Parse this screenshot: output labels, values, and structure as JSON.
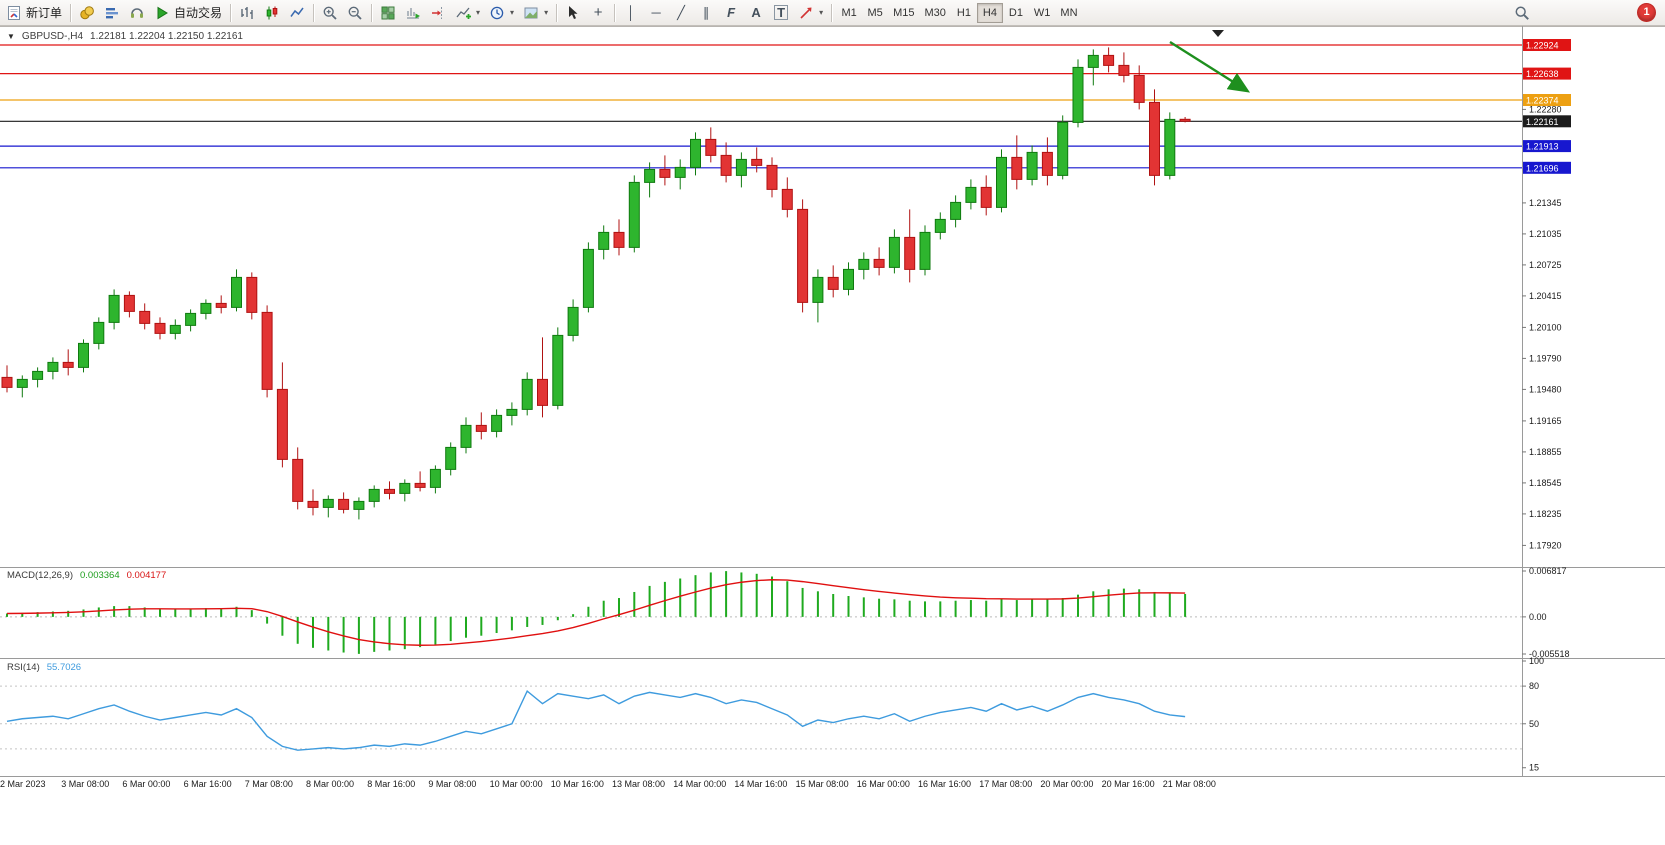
{
  "toolbar": {
    "new_order_label": "新订单",
    "auto_trading_label": "自动交易",
    "timeframes": [
      "M1",
      "M5",
      "M15",
      "M30",
      "H1",
      "H4",
      "D1",
      "W1",
      "MN"
    ],
    "active_timeframe": "H4",
    "notification_count": "1"
  },
  "icons": {
    "chart_menu": "▼",
    "caret": "▾",
    "crosshair": "+",
    "vertical_line": "│",
    "horizontal_line": "─",
    "trendline": "╱",
    "channel": "∥",
    "fibonacci": "F",
    "text_tool": "A",
    "text_label_tool": "T"
  },
  "chart": {
    "title_symbol_period": "GBPUSD-,H4",
    "ohlc_text": "1.22181 1.22204 1.22150 1.22161"
  },
  "indicators": {
    "macd": {
      "label": "MACD(12,26,9)",
      "main_value": "0.003364",
      "signal_value": "0.004177"
    },
    "rsi": {
      "label": "RSI(14)",
      "value": "55.7026"
    }
  },
  "chart_data": {
    "type": "candlestick",
    "symbol": "GBPUSD-",
    "timeframe": "H4",
    "current_bar_ohlc": [
      1.22181,
      1.22204,
      1.2215,
      1.22161
    ],
    "colors": {
      "bull": "#2eb52e",
      "bull_border": "#0f7a0f",
      "bear": "#e23434",
      "bear_border": "#b01212",
      "macd_hist": "#1faa1f",
      "macd_signal": "#e01010",
      "rsi_line": "#3e9bde"
    },
    "visible_price_range": [
      1.1775,
      1.2312
    ],
    "price_axis_ticks": [
      1.2228,
      1.21345,
      1.21035,
      1.20725,
      1.20415,
      1.201,
      1.1979,
      1.1948,
      1.19165,
      1.18855,
      1.18545,
      1.18235,
      1.1792
    ],
    "price_lines": [
      {
        "value": 1.22924,
        "color": "#e01414"
      },
      {
        "value": 1.22638,
        "color": "#e01414"
      },
      {
        "value": 1.22374,
        "color": "#eda012"
      },
      {
        "value": 1.22161,
        "color": "#1c1c1c"
      },
      {
        "value": 1.21913,
        "color": "#1717cf"
      },
      {
        "value": 1.21696,
        "color": "#1717cf"
      }
    ],
    "candles": [
      [
        1.196,
        1.1972,
        1.1945,
        1.195
      ],
      [
        1.195,
        1.1962,
        1.194,
        1.1958
      ],
      [
        1.1958,
        1.197,
        1.195,
        1.1966
      ],
      [
        1.1966,
        1.198,
        1.1958,
        1.1975
      ],
      [
        1.1975,
        1.1988,
        1.1962,
        1.197
      ],
      [
        1.197,
        1.1998,
        1.1965,
        1.1994
      ],
      [
        1.1994,
        1.202,
        1.1988,
        1.2015
      ],
      [
        1.2015,
        1.2048,
        1.2008,
        1.2042
      ],
      [
        1.2042,
        1.2046,
        1.202,
        1.2026
      ],
      [
        1.2026,
        1.2034,
        1.2008,
        1.2014
      ],
      [
        1.2014,
        1.202,
        1.1998,
        1.2004
      ],
      [
        1.2004,
        1.2018,
        1.1998,
        1.2012
      ],
      [
        1.2012,
        1.2028,
        1.2006,
        1.2024
      ],
      [
        1.2024,
        1.2038,
        1.2018,
        1.2034
      ],
      [
        1.2034,
        1.2042,
        1.2024,
        1.203
      ],
      [
        1.203,
        1.2068,
        1.2026,
        1.206
      ],
      [
        1.206,
        1.2065,
        1.2018,
        1.2025
      ],
      [
        1.2025,
        1.2032,
        1.194,
        1.1948
      ],
      [
        1.1948,
        1.1975,
        1.187,
        1.1878
      ],
      [
        1.1878,
        1.189,
        1.1828,
        1.1836
      ],
      [
        1.1836,
        1.1848,
        1.1822,
        1.183
      ],
      [
        1.183,
        1.1842,
        1.182,
        1.1838
      ],
      [
        1.1838,
        1.1845,
        1.1824,
        1.1828
      ],
      [
        1.1828,
        1.184,
        1.1818,
        1.1836
      ],
      [
        1.1836,
        1.1852,
        1.183,
        1.1848
      ],
      [
        1.1848,
        1.1856,
        1.1838,
        1.1844
      ],
      [
        1.1844,
        1.1858,
        1.1836,
        1.1854
      ],
      [
        1.1854,
        1.1866,
        1.1846,
        1.185
      ],
      [
        1.185,
        1.1872,
        1.1844,
        1.1868
      ],
      [
        1.1868,
        1.1895,
        1.1862,
        1.189
      ],
      [
        1.189,
        1.192,
        1.1884,
        1.1912
      ],
      [
        1.1912,
        1.1925,
        1.1898,
        1.1906
      ],
      [
        1.1906,
        1.1928,
        1.19,
        1.1922
      ],
      [
        1.1922,
        1.1935,
        1.1912,
        1.1928
      ],
      [
        1.1928,
        1.1965,
        1.1922,
        1.1958
      ],
      [
        1.1958,
        1.2,
        1.192,
        1.1932
      ],
      [
        1.1932,
        1.201,
        1.1928,
        1.2002
      ],
      [
        1.2002,
        1.2038,
        1.1996,
        1.203
      ],
      [
        1.203,
        1.2095,
        1.2025,
        1.2088
      ],
      [
        1.2088,
        1.2112,
        1.2078,
        1.2105
      ],
      [
        1.2105,
        1.2118,
        1.2082,
        1.209
      ],
      [
        1.209,
        1.2162,
        1.2085,
        1.2155
      ],
      [
        1.2155,
        1.2175,
        1.214,
        1.2168
      ],
      [
        1.2168,
        1.2182,
        1.2152,
        1.216
      ],
      [
        1.216,
        1.2178,
        1.2148,
        1.217
      ],
      [
        1.217,
        1.2205,
        1.2162,
        1.2198
      ],
      [
        1.2198,
        1.221,
        1.2175,
        1.2182
      ],
      [
        1.2182,
        1.2195,
        1.2155,
        1.2162
      ],
      [
        1.2162,
        1.2185,
        1.215,
        1.2178
      ],
      [
        1.2178,
        1.219,
        1.2165,
        1.2172
      ],
      [
        1.2172,
        1.218,
        1.214,
        1.2148
      ],
      [
        1.2148,
        1.216,
        1.212,
        1.2128
      ],
      [
        1.2128,
        1.2138,
        1.2025,
        1.2035
      ],
      [
        1.2035,
        1.2068,
        1.2015,
        1.206
      ],
      [
        1.206,
        1.2072,
        1.204,
        1.2048
      ],
      [
        1.2048,
        1.2075,
        1.2042,
        1.2068
      ],
      [
        1.2068,
        1.2085,
        1.2058,
        1.2078
      ],
      [
        1.2078,
        1.209,
        1.2062,
        1.207
      ],
      [
        1.207,
        1.2108,
        1.2064,
        1.21
      ],
      [
        1.21,
        1.2128,
        1.2055,
        1.2068
      ],
      [
        1.2068,
        1.2112,
        1.2062,
        1.2105
      ],
      [
        1.2105,
        1.2125,
        1.2098,
        1.2118
      ],
      [
        1.2118,
        1.2142,
        1.211,
        1.2135
      ],
      [
        1.2135,
        1.2158,
        1.2128,
        1.215
      ],
      [
        1.215,
        1.2162,
        1.2122,
        1.213
      ],
      [
        1.213,
        1.2188,
        1.2125,
        1.218
      ],
      [
        1.218,
        1.2202,
        1.2148,
        1.2158
      ],
      [
        1.2158,
        1.2192,
        1.2152,
        1.2185
      ],
      [
        1.2185,
        1.22,
        1.2152,
        1.2162
      ],
      [
        1.2162,
        1.2222,
        1.2158,
        1.2215
      ],
      [
        1.2215,
        1.2278,
        1.221,
        1.227
      ],
      [
        1.227,
        1.2288,
        1.2252,
        1.2282
      ],
      [
        1.2282,
        1.229,
        1.2265,
        1.2272
      ],
      [
        1.2272,
        1.2285,
        1.2255,
        1.2262
      ],
      [
        1.2262,
        1.2272,
        1.2228,
        1.2235
      ],
      [
        1.2235,
        1.2248,
        1.2152,
        1.2162
      ],
      [
        1.2162,
        1.2225,
        1.2158,
        1.2218
      ],
      [
        1.22181,
        1.22204,
        1.2215,
        1.22161
      ]
    ],
    "time_labels": [
      "2 Mar 2023",
      "3 Mar 08:00",
      "6 Mar 00:00",
      "6 Mar 16:00",
      "7 Mar 08:00",
      "8 Mar 00:00",
      "8 Mar 16:00",
      "9 Mar 08:00",
      "10 Mar 00:00",
      "10 Mar 16:00",
      "13 Mar 08:00",
      "14 Mar 00:00",
      "14 Mar 16:00",
      "15 Mar 08:00",
      "16 Mar 00:00",
      "16 Mar 16:00",
      "17 Mar 08:00",
      "20 Mar 00:00",
      "20 Mar 16:00",
      "21 Mar 08:00"
    ],
    "label_step": 4,
    "macd": {
      "range": [
        -0.005518,
        0.006817
      ],
      "axis": [
        {
          "value": 0.006817,
          "text": "0.006817"
        },
        {
          "value": 0,
          "text": "0.00"
        },
        {
          "value": -0.005518,
          "text": "-0.005518"
        }
      ],
      "histogram": [
        0.0005,
        0.0006,
        0.0007,
        0.0008,
        0.0009,
        0.0011,
        0.0014,
        0.0016,
        0.0016,
        0.0014,
        0.0012,
        0.0011,
        0.0012,
        0.0013,
        0.0013,
        0.0015,
        0.001,
        -0.001,
        -0.0028,
        -0.004,
        -0.0046,
        -0.005,
        -0.0053,
        -0.0055,
        -0.0052,
        -0.005,
        -0.0048,
        -0.0045,
        -0.0041,
        -0.0036,
        -0.0031,
        -0.0028,
        -0.0024,
        -0.002,
        -0.0015,
        -0.0012,
        -0.0005,
        0.0004,
        0.0015,
        0.0024,
        0.0028,
        0.0037,
        0.0046,
        0.0052,
        0.0057,
        0.0062,
        0.0066,
        0.0068,
        0.0066,
        0.0064,
        0.006,
        0.0053,
        0.0043,
        0.0038,
        0.0034,
        0.0031,
        0.0029,
        0.0027,
        0.0026,
        0.0024,
        0.0023,
        0.0023,
        0.0024,
        0.0025,
        0.0024,
        0.0026,
        0.0025,
        0.0027,
        0.0026,
        0.0028,
        0.0033,
        0.0038,
        0.0041,
        0.0042,
        0.0041,
        0.0037,
        0.0035,
        0.0034
      ]
    },
    "rsi": {
      "levels": [
        80,
        50,
        30
      ],
      "axis": [
        {
          "value": 100,
          "text": "100"
        },
        {
          "value": 80,
          "text": "80"
        },
        {
          "value": 50,
          "text": "50"
        },
        {
          "value": 15,
          "text": "15"
        }
      ],
      "values": [
        52,
        54,
        55,
        56,
        54,
        58,
        62,
        65,
        60,
        56,
        53,
        55,
        57,
        59,
        57,
        62,
        55,
        40,
        32,
        29,
        30,
        31,
        30,
        31,
        33,
        32,
        34,
        33,
        36,
        40,
        44,
        42,
        46,
        50,
        76,
        66,
        74,
        72,
        70,
        73,
        66,
        72,
        75,
        73,
        71,
        74,
        71,
        66,
        69,
        67,
        62,
        57,
        48,
        53,
        51,
        54,
        56,
        54,
        58,
        52,
        56,
        59,
        61,
        63,
        60,
        66,
        61,
        64,
        60,
        65,
        71,
        74,
        71,
        69,
        66,
        60,
        57,
        55.7
      ]
    },
    "annotation_arrow": {
      "color": "#1e8f1e",
      "direction": "down-right",
      "near_prices": [
        1.2296,
        1.2238
      ]
    }
  }
}
